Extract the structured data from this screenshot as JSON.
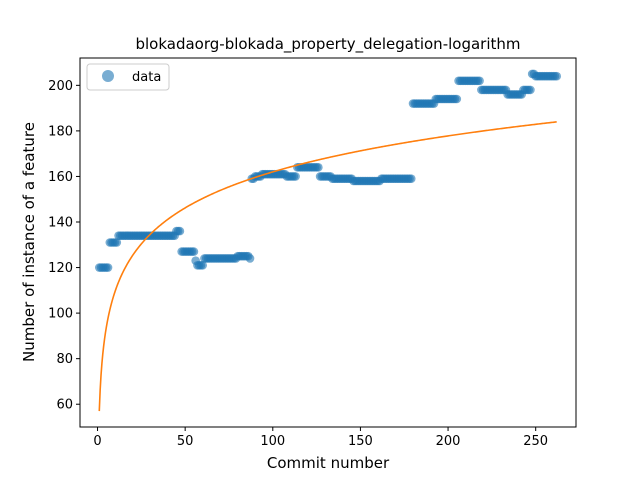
{
  "chart_data": {
    "type": "scatter",
    "title": "blokadaorg-blokada_property_delegation-logarithm",
    "xlabel": "Commit number",
    "ylabel": "Number of instance of a feature",
    "xlim": [
      -10,
      273
    ],
    "ylim": [
      50,
      212
    ],
    "xticks": [
      0,
      50,
      100,
      150,
      200,
      250
    ],
    "yticks": [
      60,
      80,
      100,
      120,
      140,
      160,
      180,
      200
    ],
    "grid": false,
    "legend": {
      "position": "top-left",
      "entries": [
        "data"
      ]
    },
    "colors": {
      "data": "#1f77b4",
      "fit": "#ff7f0e"
    },
    "series": [
      {
        "name": "data",
        "kind": "scatter",
        "segments": [
          {
            "x_start": 1,
            "x_end": 6,
            "y": 120
          },
          {
            "x_start": 7,
            "x_end": 11,
            "y": 131
          },
          {
            "x_start": 12,
            "x_end": 44,
            "y": 134
          },
          {
            "x_start": 45,
            "x_end": 47,
            "y": 136
          },
          {
            "x_start": 48,
            "x_end": 55,
            "y": 127
          },
          {
            "x_start": 56,
            "x_end": 56,
            "y": 123
          },
          {
            "x_start": 57,
            "x_end": 60,
            "y": 121
          },
          {
            "x_start": 61,
            "x_end": 79,
            "y": 124
          },
          {
            "x_start": 80,
            "x_end": 86,
            "y": 125
          },
          {
            "x_start": 87,
            "x_end": 87,
            "y": 124
          },
          {
            "x_start": 88,
            "x_end": 89,
            "y": 159
          },
          {
            "x_start": 90,
            "x_end": 93,
            "y": 160
          },
          {
            "x_start": 94,
            "x_end": 107,
            "y": 161
          },
          {
            "x_start": 108,
            "x_end": 113,
            "y": 160
          },
          {
            "x_start": 114,
            "x_end": 126,
            "y": 164
          },
          {
            "x_start": 127,
            "x_end": 133,
            "y": 160
          },
          {
            "x_start": 134,
            "x_end": 145,
            "y": 159
          },
          {
            "x_start": 146,
            "x_end": 161,
            "y": 158
          },
          {
            "x_start": 162,
            "x_end": 179,
            "y": 159
          },
          {
            "x_start": 180,
            "x_end": 192,
            "y": 192
          },
          {
            "x_start": 193,
            "x_end": 205,
            "y": 194
          },
          {
            "x_start": 206,
            "x_end": 218,
            "y": 202
          },
          {
            "x_start": 219,
            "x_end": 233,
            "y": 198
          },
          {
            "x_start": 234,
            "x_end": 242,
            "y": 196
          },
          {
            "x_start": 243,
            "x_end": 247,
            "y": 198
          },
          {
            "x_start": 248,
            "x_end": 249,
            "y": 205
          },
          {
            "x_start": 250,
            "x_end": 262,
            "y": 204
          }
        ]
      },
      {
        "kind": "line",
        "formula": "y = a + b*ln(x)",
        "a": 57,
        "b": 22.8,
        "x_start": 1,
        "x_end": 262
      }
    ]
  }
}
